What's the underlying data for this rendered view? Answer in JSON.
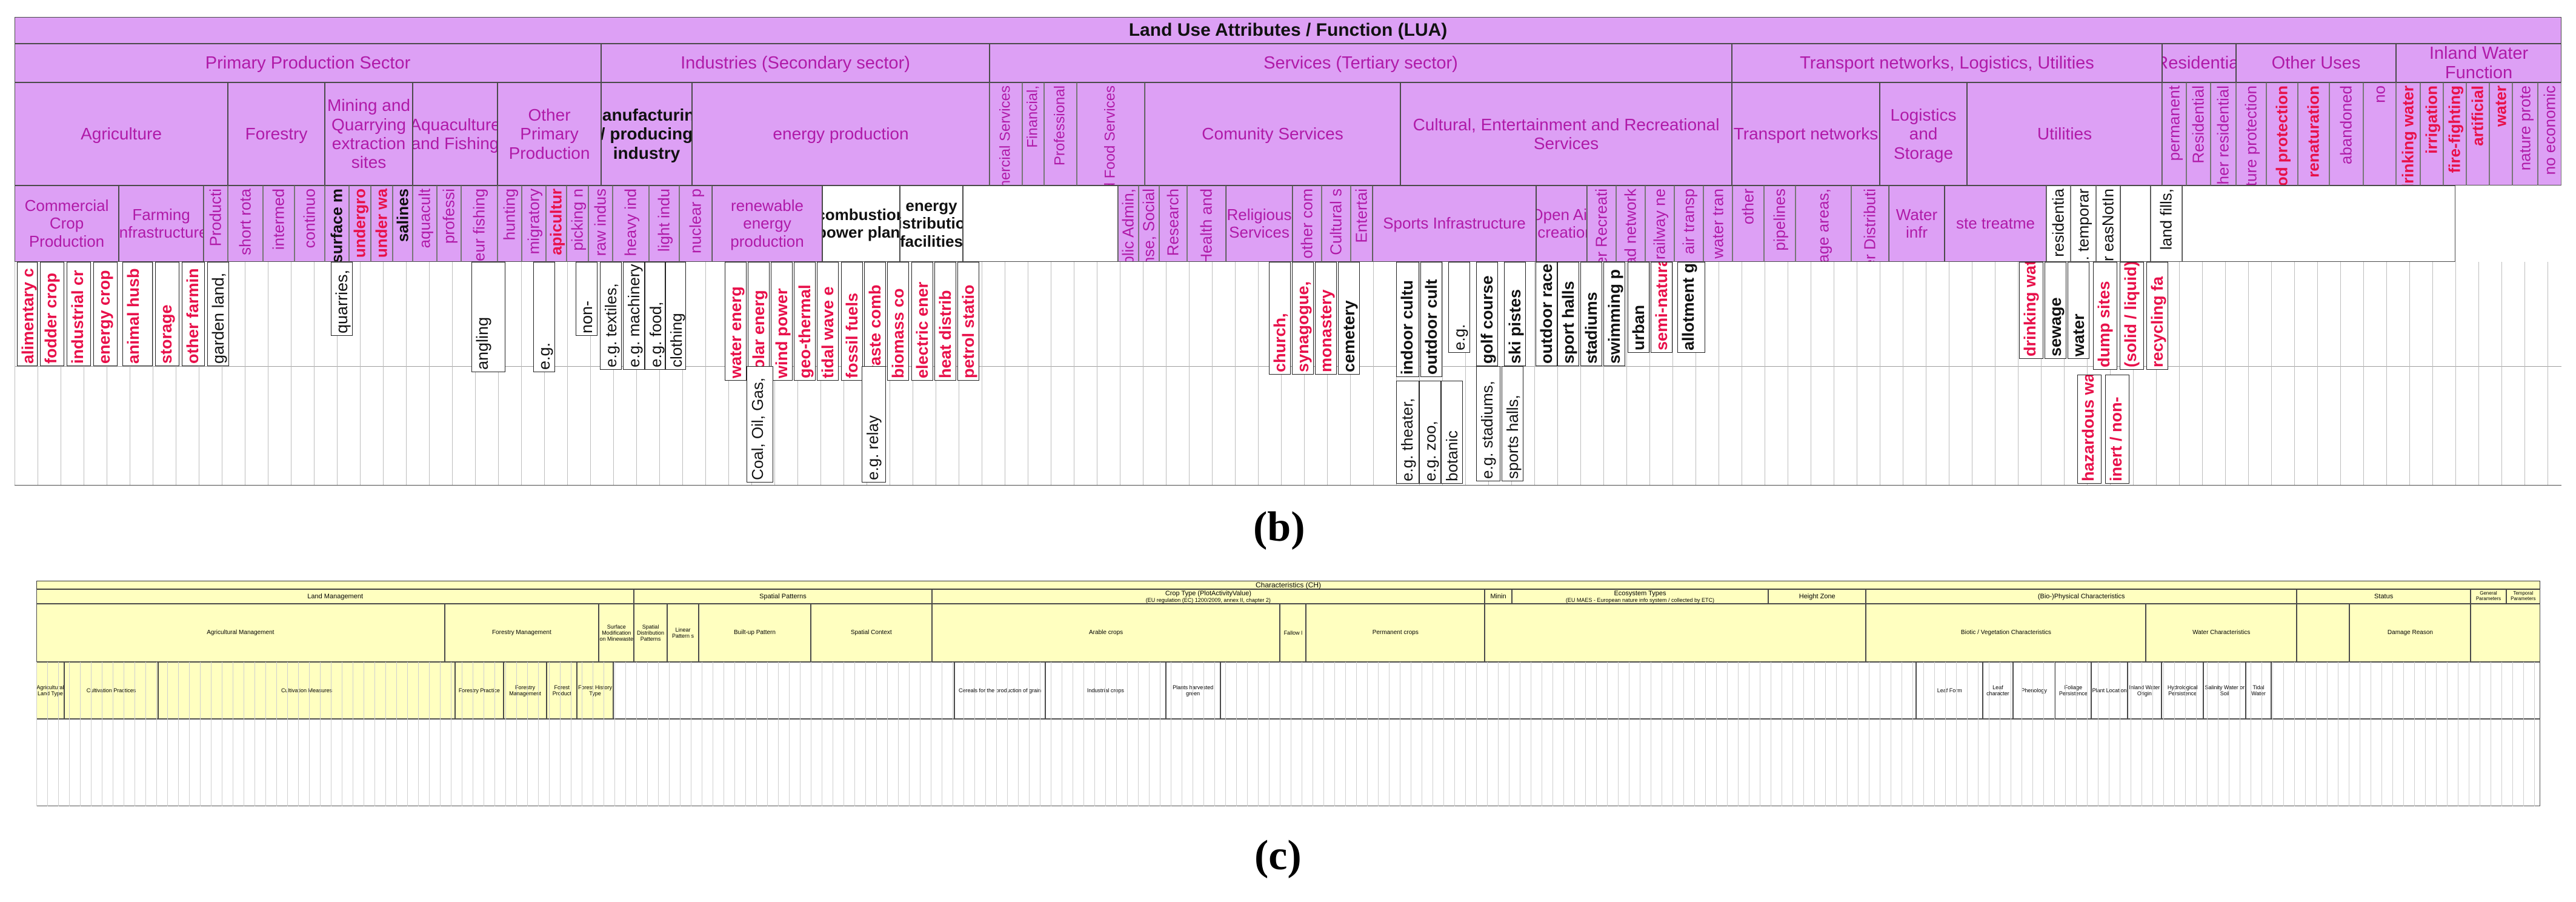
{
  "colors": {
    "header_bg": "#dda0f5",
    "header_text_magenta": "#b01aa8",
    "header_text_dark": "#111111",
    "value_red": "#e8104a",
    "panel_c_bg": "#ffffc0"
  },
  "panel_b": {
    "title": "Land Use Attributes / Function (LUA)",
    "sectors": [
      {
        "key": "primary",
        "label": "Primary Production Sector"
      },
      {
        "key": "secondary",
        "label": "Industries (Secondary sector)"
      },
      {
        "key": "services",
        "label": "Services (Tertiary sector)"
      },
      {
        "key": "transport",
        "label": "Transport networks, Logistics, Utilities"
      },
      {
        "key": "residential",
        "label": "Residential"
      },
      {
        "key": "other",
        "label": "Other Uses"
      },
      {
        "key": "inland",
        "label": "Inland Water Function"
      }
    ],
    "categories": {
      "agriculture": "Agriculture",
      "forestry": "Forestry",
      "mining": "Mining and Quarrying extraction sites",
      "aquaculture": "Aquaculture and Fishing",
      "other_primary": "Other Primary Production",
      "manufacturing": "Manufacturing / producing industry",
      "energy": "energy production",
      "commercial_services": "Commercial Services",
      "financial": "Financial,",
      "professional": "Professional",
      "accommodation": "Accommodation and Food Services",
      "community": "Comunity Services",
      "cultural": "Cultural, Entertainment and Recreational Services",
      "transport_networks": "Transport networks",
      "logistics": "Logistics and Storage",
      "utilities": "Utilities",
      "permanent": "permanent",
      "residential": "Residential",
      "other_residential": "other residential",
      "nature_protection": "nature protection",
      "flood_protection": "flood protection",
      "renaturation": "renaturation",
      "abandoned": "abandoned",
      "no": "no",
      "drinking_water": "drinking water",
      "irrigation": "irrigation",
      "fire_fighting": "fire-fighting",
      "artificial": "artificial",
      "water": "water",
      "nature_prote": "nature prote",
      "no_economic": "no economic"
    },
    "subcategories": {
      "commercial_crop": "Commercial Crop Production",
      "farming_infra": "Farming Infrastructure",
      "producti": "Producti",
      "short_rota": "short rota",
      "intermed": "intermed",
      "continuo": "continuo",
      "surface_mining": "surface m",
      "underground": "undergro",
      "under_water": "under wa",
      "salines": "salines",
      "aquaculture": "aquacult",
      "professional_fishing": "professi",
      "amateur_fishing": "amateur fishing",
      "hunting": "hunting",
      "migratory": "migratory",
      "apiculture": "apicultur",
      "picking": "picking n",
      "raw_industry": "raw indus",
      "heavy_industry": "heavy ind",
      "light_industry": "light indu",
      "nuclear": "nuclear p",
      "renewable": "renewable energy production",
      "combustion": "combustion power plant",
      "distribution": "energy distribution facilities",
      "public_admin": "Public Admin,",
      "defense": "Defense, Social",
      "education": "Education, Research",
      "health": "Health and",
      "religious": "Religious Services",
      "other_com": "other com",
      "cultural_s": "Cultural s",
      "entertainment": "Entertai",
      "sports": "Sports Infrastructure",
      "open_air": "Open Air Recreational",
      "other_recreation": "Other Recreati",
      "road": "road network",
      "railway": "railway ne",
      "air_transport": "air transp",
      "water_transport": "water tran",
      "other_transport": "other",
      "pipelines": "pipelines",
      "storage": "storage areas,",
      "power_distribution": "Power Distributi",
      "water_infra": "Water infr",
      "waste_treatment": "ste treatme",
      "residential_e": "residentia",
      "temporary": "e.g. temporar",
      "natural_areas": "NaturalAr easNotIn",
      "landfills": "land fills,"
    },
    "values": {
      "alimentary": "alimentary c",
      "fodder": "fodder crop",
      "industrial_crop": "industrial cr",
      "energy_crop": "energy crop",
      "animal_husbandry": "animal husb",
      "storage": "storage",
      "other_farming": "other farmin",
      "garden_land": "garden land,",
      "quarries": "quarries,",
      "angling": "angling",
      "eg_migratory": "e.g.",
      "non": "non-",
      "textiles": "e.g. textiles,",
      "machinery": "e.g. machinery",
      "food": "e.g. food,",
      "clothing": "clothing",
      "water_energy": "water energ",
      "solar": "solar energ",
      "wind": "wind power",
      "geothermal": "geo-thermal",
      "tidal": "tidal wave e",
      "fossil": "fossil fuels",
      "waste_combustion": "waste comb",
      "biomass": "biomass co",
      "electric": "electric ener",
      "heat": "heat distrib",
      "petrol": "petrol statio",
      "coal": "Coal, Oil, Gas,",
      "relay": "e.g. relay",
      "church": "church,",
      "synagogue": "synagogue,",
      "monastery": "monastery",
      "cemetery": "cemetery",
      "indoor": "indoor cultu",
      "outdoor": "outdoor cult",
      "theater": "e.g. theater,",
      "zoo": "e.g. zoo,",
      "botanic": "botanic",
      "eg_ent": "e.g.",
      "golf": "golf course",
      "ski": "ski pistes",
      "outdoor_race": "outdoor race",
      "sport_halls": "sport halls",
      "stadiums": "stadiums",
      "swimming": "swimming p",
      "urban": "urban",
      "semi_natural": "semi-natural",
      "allotment": "allotment garden",
      "stadiums_eg": "e.g. stadiums,",
      "sports_halls": "sports halls,",
      "drinking_water": "drinking water",
      "sewage": "sewage",
      "water_v": "water",
      "dump_sites": "dump sites",
      "solid_liquid": "(solid / liquid)",
      "recycling": "recycling fa",
      "hazardous": "hazardous waste",
      "inert": "inert / non-"
    }
  },
  "panel_c": {
    "title": "Characteristics (CH)",
    "groups": [
      {
        "label": "Land Management"
      },
      {
        "label": "Spatial Patterns"
      },
      {
        "label": "Crop Type (PlotActivityValue)",
        "note": "(EU regulation (EC) 1200/2009, annex II, chapter 2)"
      },
      {
        "label": "Minin"
      },
      {
        "label": "Ecosystem Types",
        "note": "(EU MAES - European nature info system / collected by ETC)"
      },
      {
        "label": "Height Zone"
      },
      {
        "label": "(Bio-)Physical Characteristics"
      },
      {
        "label": "Status"
      },
      {
        "label": "General Parameters"
      },
      {
        "label": "Temporal Parameters"
      }
    ],
    "subgroups": [
      "Agricultural Management",
      "Forestry Management",
      "Surface Modification on Minewaste",
      "Spatial Distribution Patterns",
      "Linear Pattern s",
      "Built-up Pattern",
      "Spatial Context",
      "Arable crops",
      "Fallow l",
      "Permanent crops",
      "Biotic / Vegetation Characteristics",
      "Water Characteristics",
      "Damage Reason"
    ],
    "detail": [
      "Agricultural Land Type",
      "Cultivation Practices",
      "Cultivation Measures",
      "Forestry Practice",
      "Forestry Management",
      "Forest Product",
      "Forest History Type",
      "Cereals for the production of grain",
      "Industrial crops",
      "Plants harvested green",
      "Leaf Form",
      "Leaf character",
      "Phenology",
      "Foliage Persistence",
      "Plant Location",
      "Inland Water Origin",
      "Hydrological Persistence",
      "Salinity Water or Soil",
      "Tidal Water"
    ]
  },
  "captions": {
    "b": "(b)",
    "c": "(c)"
  }
}
